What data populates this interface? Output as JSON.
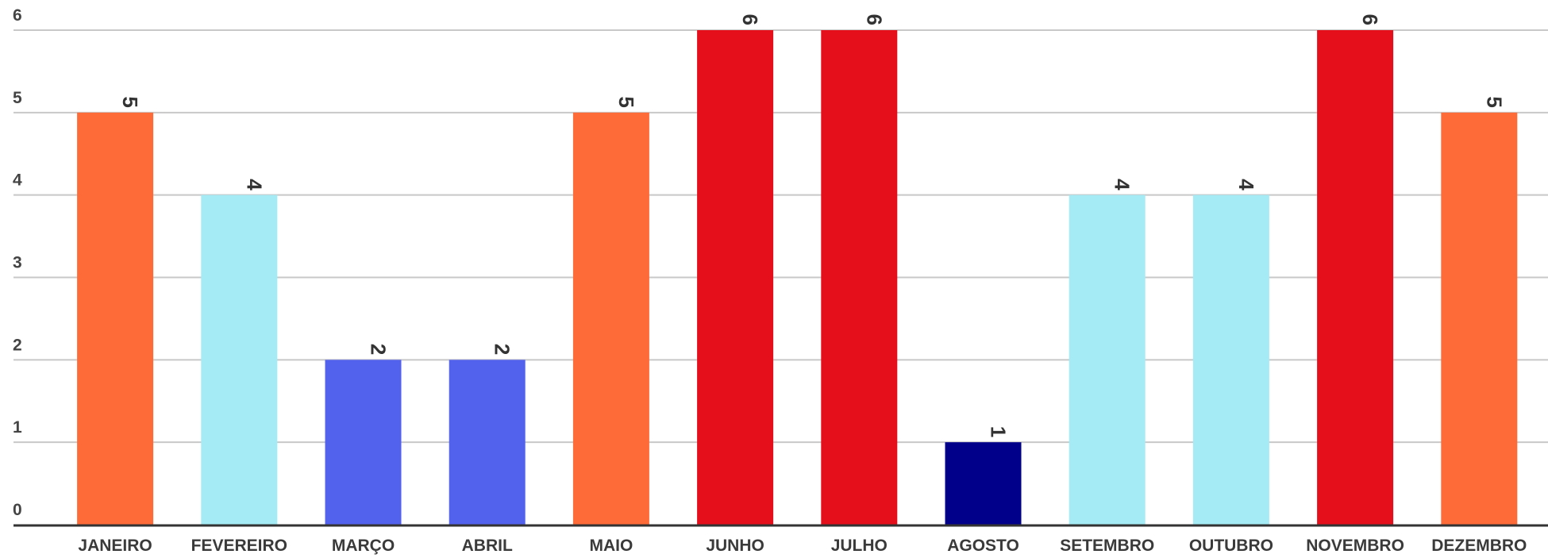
{
  "chart_data": {
    "type": "bar",
    "title": "",
    "xlabel": "",
    "ylabel": "",
    "categories": [
      "JANEIRO",
      "FEVEREIRO",
      "MARÇO",
      "ABRIL",
      "MAIO",
      "JUNHO",
      "JULHO",
      "AGOSTO",
      "SETEMBRO",
      "OUTUBRO",
      "NOVEMBRO",
      "DEZEMBRO"
    ],
    "values": [
      5,
      4,
      2,
      2,
      5,
      6,
      6,
      1,
      4,
      4,
      6,
      5
    ],
    "bar_colors": [
      "#ff6b38",
      "#a5ebf5",
      "#5362ec",
      "#5362ec",
      "#ff6b38",
      "#e50f1c",
      "#e50f1c",
      "#00008b",
      "#a5ebf5",
      "#a5ebf5",
      "#e50f1c",
      "#ff6b38"
    ],
    "ylim": [
      0,
      6
    ],
    "y_ticks": [
      0,
      1,
      2,
      3,
      4,
      5,
      6
    ],
    "grid": true,
    "data_labels": true,
    "data_label_orientation": "rotated",
    "legend": "none"
  }
}
